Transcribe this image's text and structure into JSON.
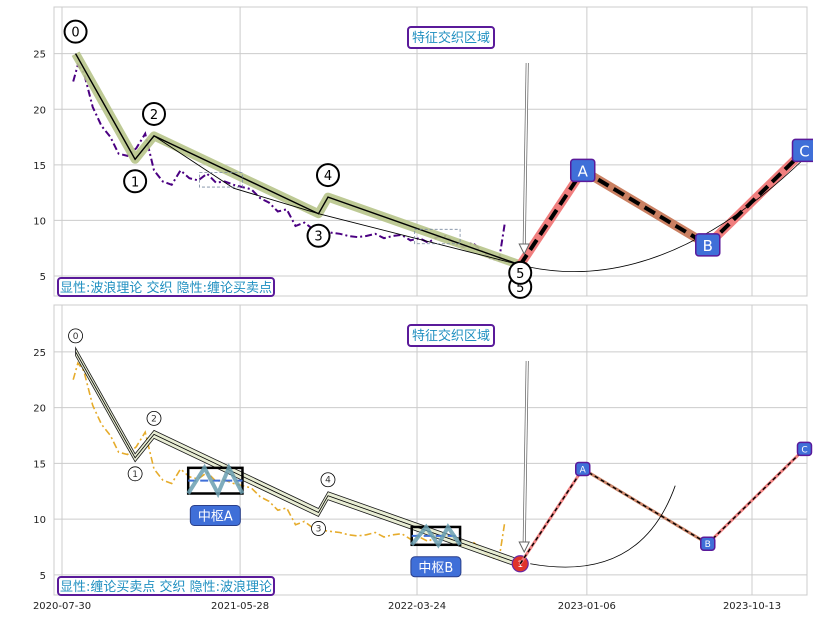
{
  "colors": {
    "grid": "#cccccc",
    "price_top": "#4b0082",
    "price_bottom": "#e6ac2c",
    "wave_band": "#b7c48a",
    "label_text": "#1f8fc0",
    "label_border": "#5a1a9a",
    "point_box": "#3f6fd8",
    "proj_up": "#f07878",
    "proj_down": "#c87a5a"
  },
  "chart_data": [
    {
      "type": "line",
      "panel": "top",
      "ylim": [
        3.2,
        29.2
      ],
      "yticks": [
        5,
        10,
        15,
        20,
        25
      ],
      "grid": true,
      "annotation_text": "特征交织区域",
      "legend_text": "显性:波浪理论 交织 隐性:缠论买卖点",
      "price_series": {
        "x": [
          "2020-08-18",
          "2020-08-26",
          "2020-09-05",
          "2020-09-20",
          "2020-10-05",
          "2020-10-20",
          "2020-11-03",
          "2020-11-18",
          "2020-12-03",
          "2020-12-18",
          "2021-01-02",
          "2021-01-17",
          "2021-02-01",
          "2021-02-16",
          "2021-03-03",
          "2021-03-18",
          "2021-04-02",
          "2021-04-17",
          "2021-05-02",
          "2021-05-17",
          "2021-06-01",
          "2021-06-16",
          "2021-07-01",
          "2021-07-16",
          "2021-07-31",
          "2021-08-15",
          "2021-08-30",
          "2021-09-14",
          "2021-09-29",
          "2021-10-14",
          "2021-10-29",
          "2021-11-13",
          "2021-11-28",
          "2021-12-13",
          "2021-12-28",
          "2022-01-12",
          "2022-01-27",
          "2022-02-11",
          "2022-02-26",
          "2022-03-13",
          "2022-03-28",
          "2022-04-12",
          "2022-04-27",
          "2022-05-12",
          "2022-05-27",
          "2022-06-11",
          "2022-06-26",
          "2022-07-11",
          "2022-07-26",
          "2022-08-10",
          "2022-08-20"
        ],
        "y": [
          22.5,
          24.0,
          23.3,
          20.2,
          18.5,
          17.5,
          16.0,
          15.8,
          16.5,
          17.8,
          14.5,
          13.5,
          13.2,
          14.5,
          13.8,
          13.6,
          14.2,
          13.4,
          13.5,
          13.2,
          13.0,
          12.8,
          12.0,
          11.6,
          10.8,
          11.0,
          9.5,
          9.8,
          9.2,
          9.0,
          8.9,
          8.8,
          8.6,
          8.5,
          8.6,
          8.8,
          8.4,
          8.6,
          8.7,
          8.2,
          8.4,
          8.0,
          8.5,
          8.6,
          7.9,
          7.6,
          8.0,
          7.3,
          6.6,
          6.4,
          9.8
        ]
      },
      "wave_points": [
        {
          "label": "0",
          "date": "2020-08-22",
          "value": 25.0
        },
        {
          "label": "1",
          "date": "2020-12-01",
          "value": 15.5
        },
        {
          "label": "2",
          "date": "2021-01-02",
          "value": 17.6
        },
        {
          "label": "3",
          "date": "2021-10-08",
          "value": 10.6
        },
        {
          "label": "4",
          "date": "2021-10-24",
          "value": 12.1
        },
        {
          "label": "5",
          "date": "2022-09-15",
          "value": 6.0
        }
      ],
      "chan_points": [
        {
          "date": "2020-08-22",
          "value": 25.0
        },
        {
          "date": "2020-12-01",
          "value": 15.5
        },
        {
          "date": "2021-01-02",
          "value": 17.6
        },
        {
          "date": "2021-05-17",
          "value": 12.9
        },
        {
          "date": "2021-10-08",
          "value": 10.6
        },
        {
          "date": "2022-09-15",
          "value": 6.0
        }
      ],
      "projection": [
        {
          "label": "",
          "date": "2022-09-15",
          "value": 6.0
        },
        {
          "label": "A",
          "date": "2022-12-30",
          "value": 14.5
        },
        {
          "label": "B",
          "date": "2023-07-30",
          "value": 7.8
        },
        {
          "label": "C",
          "date": "2024-01-10",
          "value": 16.3
        }
      ]
    },
    {
      "type": "line",
      "panel": "bottom",
      "ylim": [
        3.2,
        29.2
      ],
      "yticks": [
        5,
        10,
        15,
        20,
        25
      ],
      "xticks": [
        "2020-07-30",
        "2021-05-28",
        "2022-03-24",
        "2023-01-06",
        "2023-10-13"
      ],
      "grid": true,
      "annotation_text": "特征交织区域",
      "legend_text": "显性:缠论买卖点 交织 隐性:波浪理论",
      "hubs": [
        {
          "label": "中枢A",
          "x_start": "2021-03-01",
          "x_end": "2021-06-01",
          "low": 12.3,
          "high": 14.6
        },
        {
          "label": "中枢B",
          "x_start": "2022-03-15",
          "x_end": "2022-06-05",
          "low": 7.7,
          "high": 9.3
        }
      ],
      "price_series": {
        "x": [
          "2020-08-18",
          "2020-08-26",
          "2020-09-05",
          "2020-09-20",
          "2020-10-05",
          "2020-10-20",
          "2020-11-03",
          "2020-11-18",
          "2020-12-03",
          "2020-12-18",
          "2021-01-02",
          "2021-01-17",
          "2021-02-01",
          "2021-02-16",
          "2021-03-03",
          "2021-03-18",
          "2021-04-02",
          "2021-04-17",
          "2021-05-02",
          "2021-05-17",
          "2021-06-01",
          "2021-06-16",
          "2021-07-01",
          "2021-07-16",
          "2021-07-31",
          "2021-08-15",
          "2021-08-30",
          "2021-09-14",
          "2021-09-29",
          "2021-10-14",
          "2021-10-29",
          "2021-11-13",
          "2021-11-28",
          "2021-12-13",
          "2021-12-28",
          "2022-01-12",
          "2022-01-27",
          "2022-02-11",
          "2022-02-26",
          "2022-03-13",
          "2022-03-28",
          "2022-04-12",
          "2022-04-27",
          "2022-05-12",
          "2022-05-27",
          "2022-06-11",
          "2022-06-26",
          "2022-07-11",
          "2022-07-26",
          "2022-08-10",
          "2022-08-20"
        ],
        "y": [
          22.5,
          24.0,
          23.3,
          20.2,
          18.5,
          17.5,
          16.0,
          15.8,
          16.5,
          17.8,
          14.5,
          13.5,
          13.2,
          14.5,
          13.8,
          13.6,
          14.2,
          13.4,
          13.5,
          13.2,
          13.0,
          12.8,
          12.0,
          11.6,
          10.8,
          11.0,
          9.5,
          9.8,
          9.2,
          9.0,
          8.9,
          8.8,
          8.6,
          8.5,
          8.6,
          8.8,
          8.4,
          8.6,
          8.7,
          8.2,
          8.4,
          8.0,
          8.5,
          8.6,
          7.9,
          7.6,
          8.0,
          7.3,
          6.6,
          6.4,
          9.8
        ]
      },
      "wave_points": [
        {
          "label": "0",
          "date": "2020-08-22",
          "value": 25.0
        },
        {
          "label": "1",
          "date": "2020-12-01",
          "value": 15.5
        },
        {
          "label": "2",
          "date": "2021-01-02",
          "value": 17.6
        },
        {
          "label": "3",
          "date": "2021-10-08",
          "value": 10.6
        },
        {
          "label": "4",
          "date": "2021-10-24",
          "value": 12.1
        },
        {
          "label": "",
          "date": "2022-09-15",
          "value": 6.0
        }
      ],
      "buy_point": {
        "label": "1",
        "date": "2022-09-15",
        "value": 6.0
      },
      "projection": [
        {
          "label": "",
          "date": "2022-09-15",
          "value": 6.0
        },
        {
          "label": "A",
          "date": "2022-12-30",
          "value": 14.5
        },
        {
          "label": "B",
          "date": "2023-07-30",
          "value": 7.8
        },
        {
          "label": "C",
          "date": "2024-01-10",
          "value": 16.3
        }
      ]
    }
  ]
}
